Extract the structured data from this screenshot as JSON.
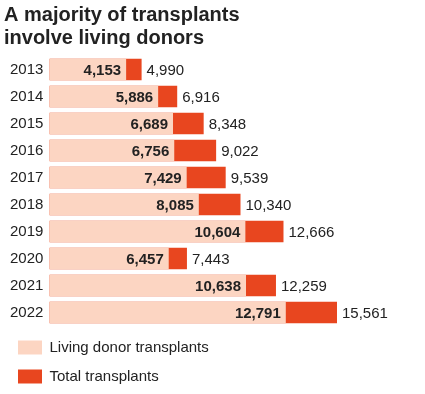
{
  "chart_data": {
    "type": "bar",
    "title": "A majority of transplants involve living donors",
    "orientation": "horizontal",
    "categories": [
      "2013",
      "2014",
      "2015",
      "2016",
      "2017",
      "2018",
      "2019",
      "2020",
      "2021",
      "2022"
    ],
    "series": [
      {
        "name": "Living donor transplants",
        "color": "#fcd5c2",
        "values": [
          4153,
          5886,
          6689,
          6756,
          7429,
          8085,
          10604,
          6457,
          10638,
          12791
        ],
        "value_labels": [
          "4,153",
          "5,886",
          "6,689",
          "6,756",
          "7,429",
          "8,085",
          "10,604",
          "6,457",
          "10,638",
          "12,791"
        ]
      },
      {
        "name": "Total transplants",
        "color": "#e8461f",
        "values": [
          4990,
          6916,
          8348,
          9022,
          9539,
          10340,
          12666,
          7443,
          12259,
          15561
        ],
        "value_labels": [
          "4,990",
          "6,916",
          "8,348",
          "9,022",
          "9,539",
          "10,340",
          "12,666",
          "7,443",
          "12,259",
          "15,561"
        ]
      }
    ],
    "xlim": [
      0,
      15561
    ],
    "stacked": false,
    "grid": false,
    "legend": "bottom",
    "data_labels": true,
    "tick_labels": "y"
  }
}
